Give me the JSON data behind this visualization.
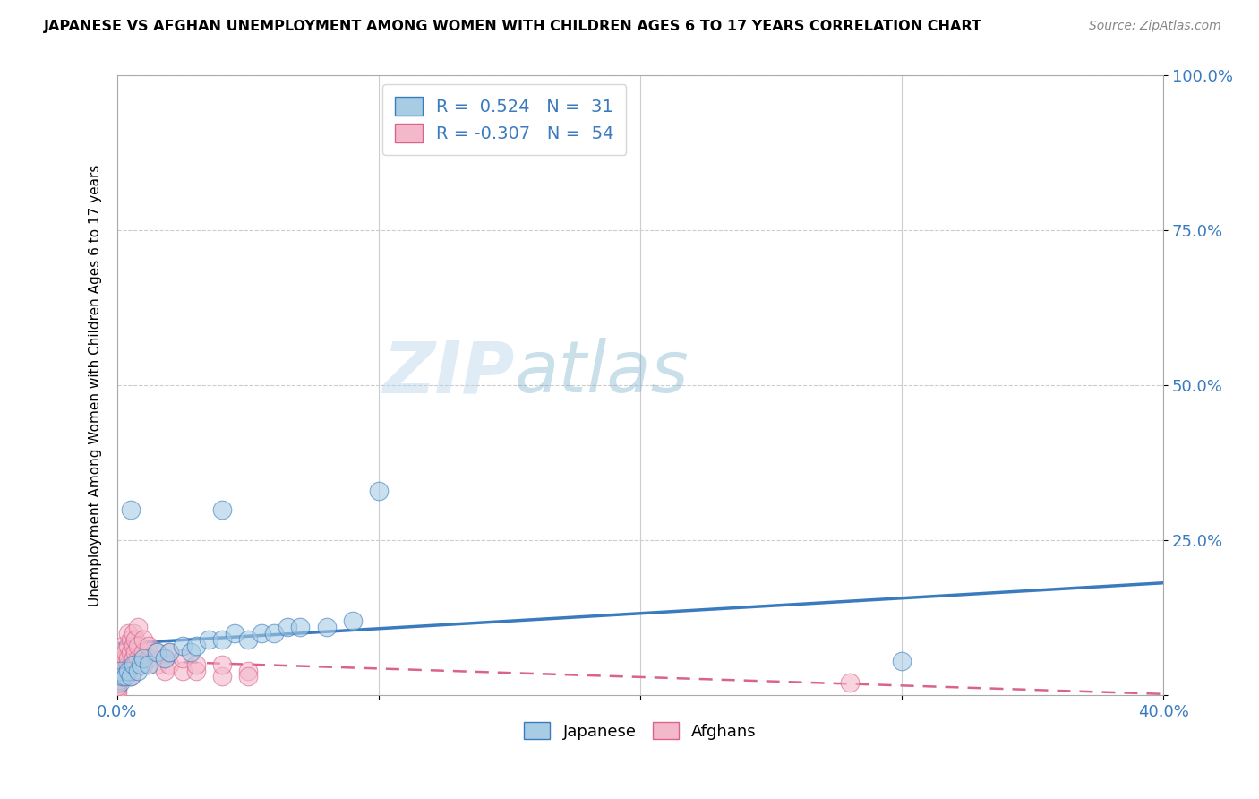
{
  "title": "JAPANESE VS AFGHAN UNEMPLOYMENT AMONG WOMEN WITH CHILDREN AGES 6 TO 17 YEARS CORRELATION CHART",
  "source": "Source: ZipAtlas.com",
  "ylabel": "Unemployment Among Women with Children Ages 6 to 17 years",
  "xlim": [
    0.0,
    0.4
  ],
  "ylim": [
    0.0,
    1.0
  ],
  "xticks": [
    0.0,
    0.1,
    0.2,
    0.3,
    0.4
  ],
  "xticklabels": [
    "0.0%",
    "",
    "",
    "",
    "40.0%"
  ],
  "yticks": [
    0.0,
    0.25,
    0.5,
    0.75,
    1.0
  ],
  "yticklabels": [
    "",
    "25.0%",
    "50.0%",
    "75.0%",
    "100.0%"
  ],
  "japanese_R": 0.524,
  "japanese_N": 31,
  "afghan_R": -0.307,
  "afghan_N": 54,
  "japanese_color": "#a8cce4",
  "afghan_color": "#f4b8cb",
  "japanese_line_color": "#3a7bbf",
  "afghan_line_color": "#d9638a",
  "watermark_zip": "ZIP",
  "watermark_atlas": "atlas",
  "background_color": "#ffffff",
  "japanese_points": [
    [
      0.001,
      0.02
    ],
    [
      0.001,
      0.04
    ],
    [
      0.002,
      0.03
    ],
    [
      0.003,
      0.03
    ],
    [
      0.004,
      0.04
    ],
    [
      0.005,
      0.03
    ],
    [
      0.006,
      0.05
    ],
    [
      0.008,
      0.04
    ],
    [
      0.009,
      0.05
    ],
    [
      0.01,
      0.06
    ],
    [
      0.012,
      0.05
    ],
    [
      0.015,
      0.07
    ],
    [
      0.018,
      0.06
    ],
    [
      0.02,
      0.07
    ],
    [
      0.025,
      0.08
    ],
    [
      0.028,
      0.07
    ],
    [
      0.03,
      0.08
    ],
    [
      0.035,
      0.09
    ],
    [
      0.04,
      0.09
    ],
    [
      0.045,
      0.1
    ],
    [
      0.05,
      0.09
    ],
    [
      0.055,
      0.1
    ],
    [
      0.06,
      0.1
    ],
    [
      0.065,
      0.11
    ],
    [
      0.07,
      0.11
    ],
    [
      0.08,
      0.11
    ],
    [
      0.09,
      0.12
    ],
    [
      0.04,
      0.3
    ],
    [
      0.1,
      0.33
    ],
    [
      0.005,
      0.3
    ],
    [
      0.3,
      0.055
    ]
  ],
  "afghan_points": [
    [
      0.0,
      0.005
    ],
    [
      0.0,
      0.01
    ],
    [
      0.0,
      0.015
    ],
    [
      0.0,
      0.02
    ],
    [
      0.001,
      0.025
    ],
    [
      0.001,
      0.03
    ],
    [
      0.001,
      0.04
    ],
    [
      0.001,
      0.05
    ],
    [
      0.002,
      0.03
    ],
    [
      0.002,
      0.04
    ],
    [
      0.002,
      0.06
    ],
    [
      0.002,
      0.08
    ],
    [
      0.003,
      0.04
    ],
    [
      0.003,
      0.05
    ],
    [
      0.003,
      0.06
    ],
    [
      0.003,
      0.07
    ],
    [
      0.004,
      0.05
    ],
    [
      0.004,
      0.06
    ],
    [
      0.004,
      0.08
    ],
    [
      0.004,
      0.1
    ],
    [
      0.005,
      0.03
    ],
    [
      0.005,
      0.05
    ],
    [
      0.005,
      0.07
    ],
    [
      0.005,
      0.09
    ],
    [
      0.006,
      0.04
    ],
    [
      0.006,
      0.06
    ],
    [
      0.006,
      0.08
    ],
    [
      0.006,
      0.1
    ],
    [
      0.007,
      0.05
    ],
    [
      0.007,
      0.07
    ],
    [
      0.007,
      0.09
    ],
    [
      0.008,
      0.06
    ],
    [
      0.008,
      0.08
    ],
    [
      0.008,
      0.11
    ],
    [
      0.01,
      0.05
    ],
    [
      0.01,
      0.07
    ],
    [
      0.01,
      0.09
    ],
    [
      0.012,
      0.06
    ],
    [
      0.012,
      0.08
    ],
    [
      0.015,
      0.05
    ],
    [
      0.015,
      0.07
    ],
    [
      0.018,
      0.06
    ],
    [
      0.018,
      0.04
    ],
    [
      0.02,
      0.05
    ],
    [
      0.02,
      0.07
    ],
    [
      0.025,
      0.04
    ],
    [
      0.025,
      0.06
    ],
    [
      0.03,
      0.04
    ],
    [
      0.03,
      0.05
    ],
    [
      0.04,
      0.03
    ],
    [
      0.04,
      0.05
    ],
    [
      0.05,
      0.04
    ],
    [
      0.05,
      0.03
    ],
    [
      0.28,
      0.02
    ]
  ]
}
